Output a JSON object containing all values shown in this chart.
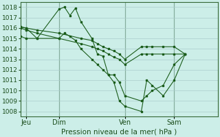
{
  "title": "Pression niveau de la mer( hPa )",
  "bg_color": "#cceee8",
  "grid_color": "#aacccc",
  "line_color": "#1a5c1a",
  "marker_color": "#1a5c1a",
  "ylim": [
    1007.5,
    1018.5
  ],
  "yticks": [
    1008,
    1009,
    1010,
    1011,
    1012,
    1013,
    1014,
    1015,
    1016,
    1017,
    1018
  ],
  "xtick_labels": [
    "Jeu",
    "Dim",
    "Ven",
    "Sam"
  ],
  "xtick_positions": [
    1,
    7,
    19,
    28
  ],
  "xlim": [
    0,
    36
  ],
  "series": [
    {
      "x": [
        0,
        1,
        3,
        7,
        8,
        9,
        10,
        11,
        13,
        14,
        15,
        16,
        17,
        18,
        19,
        22,
        23,
        24,
        26,
        28,
        30
      ],
      "y": [
        1016.1,
        1016.0,
        1015.0,
        1017.8,
        1018.0,
        1017.2,
        1017.9,
        1016.6,
        1015.0,
        1013.5,
        1013.3,
        1011.5,
        1010.8,
        1009.0,
        1008.5,
        1008.0,
        1011.0,
        1010.5,
        1009.5,
        1011.0,
        1013.5
      ]
    },
    {
      "x": [
        0,
        1,
        3,
        7,
        8,
        9,
        10,
        11,
        13,
        14,
        15,
        16,
        17,
        18,
        19,
        22,
        23,
        24,
        26,
        28,
        30
      ],
      "y": [
        1015.2,
        1015.0,
        1015.0,
        1015.0,
        1015.5,
        1015.2,
        1014.8,
        1014.0,
        1013.0,
        1012.5,
        1012.0,
        1011.5,
        1011.5,
        1010.8,
        1009.5,
        1009.0,
        1009.5,
        1010.0,
        1010.5,
        1012.5,
        1013.5
      ]
    },
    {
      "x": [
        0,
        1,
        3,
        7,
        11,
        13,
        14,
        15,
        16,
        17,
        18,
        19,
        22,
        23,
        24,
        26,
        28,
        30
      ],
      "y": [
        1016.0,
        1015.8,
        1015.5,
        1015.0,
        1014.5,
        1014.2,
        1014.0,
        1013.8,
        1013.5,
        1013.2,
        1013.0,
        1012.5,
        1013.5,
        1013.5,
        1013.5,
        1013.5,
        1013.5,
        1013.5
      ]
    },
    {
      "x": [
        0,
        1,
        3,
        7,
        11,
        13,
        14,
        15,
        16,
        17,
        18,
        19,
        22,
        23,
        24,
        26,
        28,
        30
      ],
      "y": [
        1016.1,
        1016.0,
        1015.8,
        1015.5,
        1015.0,
        1014.8,
        1014.5,
        1014.2,
        1014.0,
        1013.8,
        1013.5,
        1013.0,
        1014.2,
        1014.2,
        1014.2,
        1014.2,
        1014.2,
        1013.5
      ]
    }
  ]
}
